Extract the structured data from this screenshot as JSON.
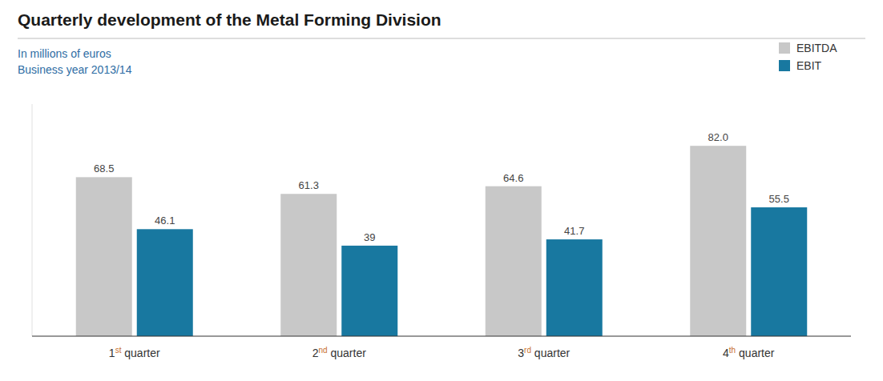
{
  "chart_data": {
    "type": "bar",
    "title": "Quarterly development of the Metal Forming Division",
    "subtitle": [
      "In millions of euros",
      "Business year 2013/14"
    ],
    "categories": [
      "1st quarter",
      "2nd quarter",
      "3rd quarter",
      "4th quarter"
    ],
    "series": [
      {
        "name": "EBITDA",
        "color": "#c8c8c8",
        "values": [
          68.5,
          61.3,
          64.6,
          82.0
        ],
        "value_labels": [
          "68.5",
          "61.3",
          "64.6",
          "82.0"
        ]
      },
      {
        "name": "EBIT",
        "color": "#1878a0",
        "values": [
          46.1,
          39.0,
          41.7,
          55.5
        ]
      }
    ],
    "ylim": [
      0,
      100
    ],
    "grid": false,
    "legend": "upper right",
    "data_labels": true,
    "tick_labels": "x"
  }
}
